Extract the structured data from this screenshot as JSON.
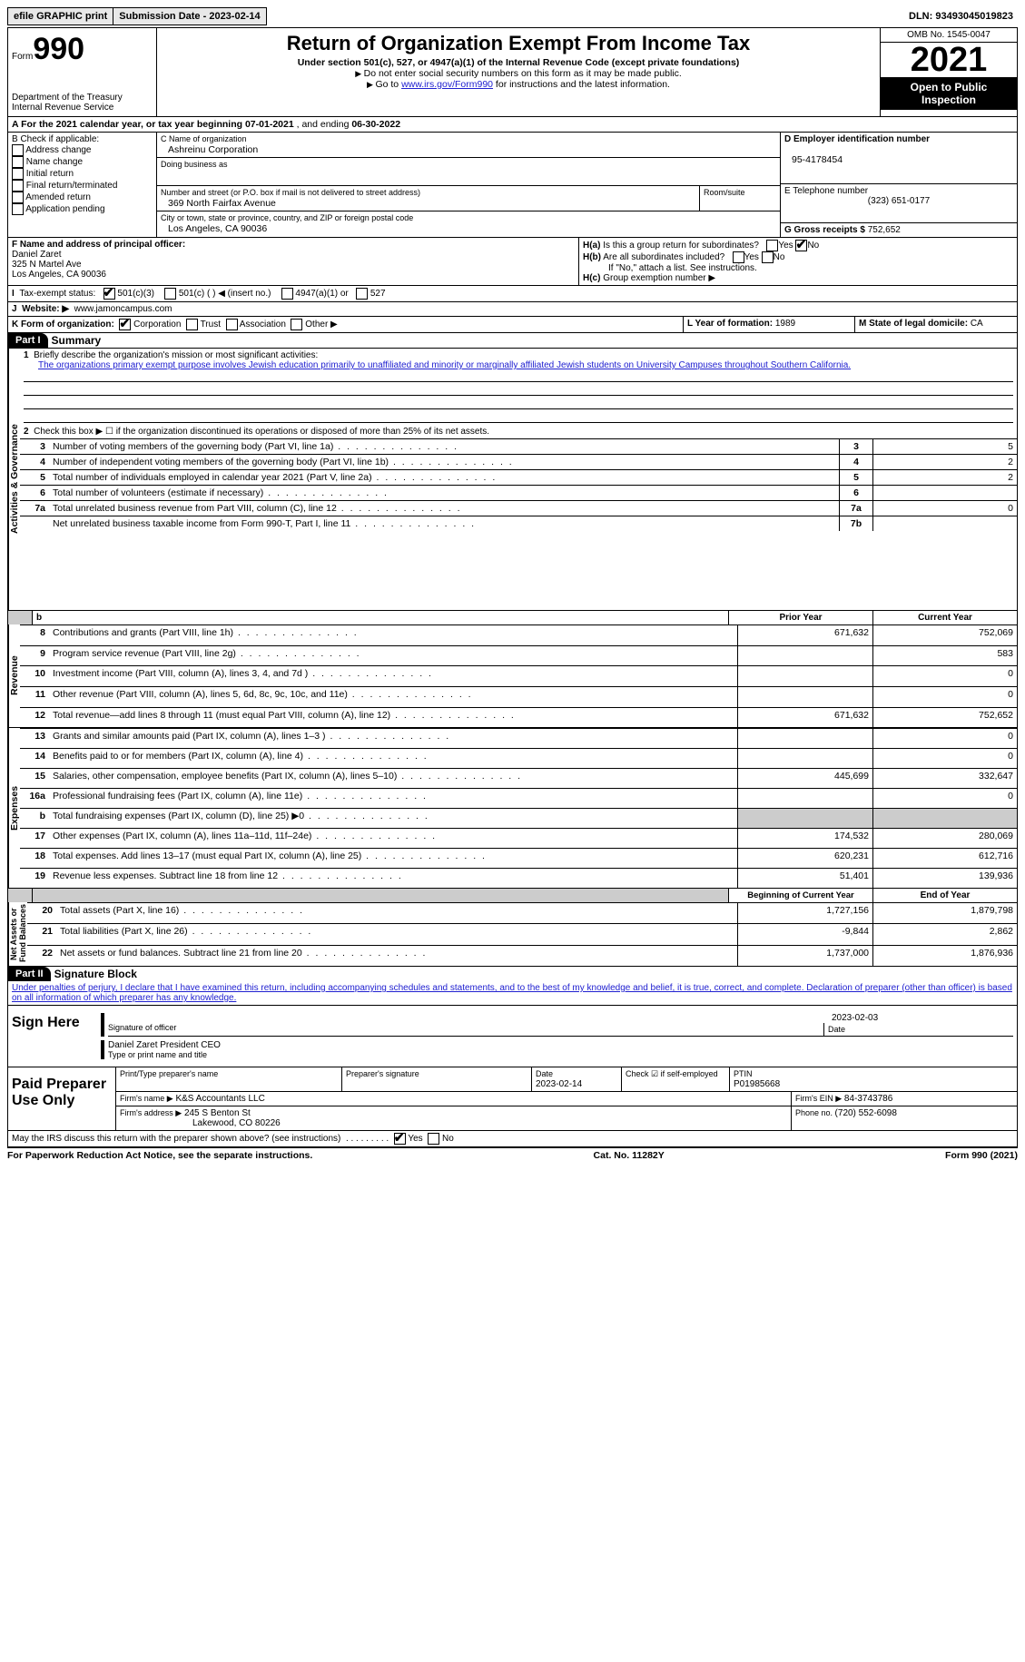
{
  "topbar": {
    "efile": "efile GRAPHIC print",
    "sub_label": "Submission Date - ",
    "sub_date": "2023-02-14",
    "dln_label": "DLN: ",
    "dln": "93493045019823"
  },
  "header": {
    "form_word": "Form",
    "form_no": "990",
    "title": "Return of Organization Exempt From Income Tax",
    "sub": "Under section 501(c), 527, or 4947(a)(1) of the Internal Revenue Code (except private foundations)",
    "note1": "Do not enter social security numbers on this form as it may be made public.",
    "note2_pre": "Go to ",
    "note2_link": "www.irs.gov/Form990",
    "note2_post": " for instructions and the latest information.",
    "dept": "Department of the Treasury",
    "irs": "Internal Revenue Service",
    "omb": "OMB No. 1545-0047",
    "year": "2021",
    "inspect": "Open to Public Inspection"
  },
  "A": {
    "text_pre": "A For the 2021 calendar year, or tax year beginning ",
    "begin": "07-01-2021",
    "mid": " , and ending ",
    "end": "06-30-2022"
  },
  "B": {
    "title": "B Check if applicable:",
    "opts": [
      "Address change",
      "Name change",
      "Initial return",
      "Final return/terminated",
      "Amended return",
      "Application pending"
    ]
  },
  "C": {
    "name_lbl": "C Name of organization",
    "name": "Ashreinu Corporation",
    "dba_lbl": "Doing business as",
    "dba": "",
    "addr_lbl": "Number and street (or P.O. box if mail is not delivered to street address)",
    "room_lbl": "Room/suite",
    "addr": "369 North Fairfax Avenue",
    "city_lbl": "City or town, state or province, country, and ZIP or foreign postal code",
    "city": "Los Angeles, CA  90036"
  },
  "D": {
    "lbl": "D Employer identification number",
    "val": "95-4178454"
  },
  "E": {
    "lbl": "E Telephone number",
    "val": "(323) 651-0177"
  },
  "G": {
    "lbl": "G Gross receipts $ ",
    "val": "752,652"
  },
  "F": {
    "lbl": "F Name and address of principal officer:",
    "name": "Daniel Zaret",
    "addr1": "325 N Martel Ave",
    "addr2": "Los Angeles, CA  90036"
  },
  "H": {
    "a": "Is this a group return for subordinates?",
    "b": "Are all subordinates included?",
    "note": "If \"No,\" attach a list. See instructions.",
    "c": "Group exemption number ▶",
    "yes": "Yes",
    "no": "No"
  },
  "I": {
    "lbl": "Tax-exempt status:",
    "o1": "501(c)(3)",
    "o2": "501(c) (  ) ◀ (insert no.)",
    "o3": "4947(a)(1) or",
    "o4": "527"
  },
  "J": {
    "lbl": "Website: ▶",
    "val": "www.jamoncampus.com"
  },
  "K": {
    "lbl": "K Form of organization:",
    "o1": "Corporation",
    "o2": "Trust",
    "o3": "Association",
    "o4": "Other ▶"
  },
  "L": {
    "lbl": "L Year of formation: ",
    "val": "1989"
  },
  "M": {
    "lbl": "M State of legal domicile: ",
    "val": "CA"
  },
  "part1": {
    "hdr": "Part I",
    "title": "Summary"
  },
  "p1": {
    "l1_lbl": "Briefly describe the organization's mission or most significant activities:",
    "l1_txt": "The organizations primary exempt purpose involves Jewish education primarily to unaffiliated and minority or marginally affiliated Jewish students on University Campuses throughout Southern California.",
    "l2": "Check this box ▶ ☐ if the organization discontinued its operations or disposed of more than 25% of its net assets.",
    "rows_ag": [
      {
        "n": "3",
        "t": "Number of voting members of the governing body (Part VI, line 1a)",
        "box": "3",
        "v": "5"
      },
      {
        "n": "4",
        "t": "Number of independent voting members of the governing body (Part VI, line 1b)",
        "box": "4",
        "v": "2"
      },
      {
        "n": "5",
        "t": "Total number of individuals employed in calendar year 2021 (Part V, line 2a)",
        "box": "5",
        "v": "2"
      },
      {
        "n": "6",
        "t": "Total number of volunteers (estimate if necessary)",
        "box": "6",
        "v": ""
      },
      {
        "n": "7a",
        "t": "Total unrelated business revenue from Part VIII, column (C), line 12",
        "box": "7a",
        "v": "0"
      },
      {
        "n": "",
        "t": "Net unrelated business taxable income from Form 990-T, Part I, line 11",
        "box": "7b",
        "v": ""
      }
    ],
    "col_prior": "Prior Year",
    "col_curr": "Current Year",
    "rev": [
      {
        "n": "8",
        "t": "Contributions and grants (Part VIII, line 1h)",
        "p": "671,632",
        "c": "752,069"
      },
      {
        "n": "9",
        "t": "Program service revenue (Part VIII, line 2g)",
        "p": "",
        "c": "583"
      },
      {
        "n": "10",
        "t": "Investment income (Part VIII, column (A), lines 3, 4, and 7d )",
        "p": "",
        "c": "0"
      },
      {
        "n": "11",
        "t": "Other revenue (Part VIII, column (A), lines 5, 6d, 8c, 9c, 10c, and 11e)",
        "p": "",
        "c": "0"
      },
      {
        "n": "12",
        "t": "Total revenue—add lines 8 through 11 (must equal Part VIII, column (A), line 12)",
        "p": "671,632",
        "c": "752,652"
      }
    ],
    "exp": [
      {
        "n": "13",
        "t": "Grants and similar amounts paid (Part IX, column (A), lines 1–3 )",
        "p": "",
        "c": "0"
      },
      {
        "n": "14",
        "t": "Benefits paid to or for members (Part IX, column (A), line 4)",
        "p": "",
        "c": "0"
      },
      {
        "n": "15",
        "t": "Salaries, other compensation, employee benefits (Part IX, column (A), lines 5–10)",
        "p": "445,699",
        "c": "332,647"
      },
      {
        "n": "16a",
        "t": "Professional fundraising fees (Part IX, column (A), line 11e)",
        "p": "",
        "c": "0"
      },
      {
        "n": "b",
        "t": "Total fundraising expenses (Part IX, column (D), line 25) ▶0",
        "p": "SHADE",
        "c": "SHADE"
      },
      {
        "n": "17",
        "t": "Other expenses (Part IX, column (A), lines 11a–11d, 11f–24e)",
        "p": "174,532",
        "c": "280,069"
      },
      {
        "n": "18",
        "t": "Total expenses. Add lines 13–17 (must equal Part IX, column (A), line 25)",
        "p": "620,231",
        "c": "612,716"
      },
      {
        "n": "19",
        "t": "Revenue less expenses. Subtract line 18 from line 12",
        "p": "51,401",
        "c": "139,936"
      }
    ],
    "col_beg": "Beginning of Current Year",
    "col_end": "End of Year",
    "na": [
      {
        "n": "20",
        "t": "Total assets (Part X, line 16)",
        "p": "1,727,156",
        "c": "1,879,798"
      },
      {
        "n": "21",
        "t": "Total liabilities (Part X, line 26)",
        "p": "-9,844",
        "c": "2,862"
      },
      {
        "n": "22",
        "t": "Net assets or fund balances. Subtract line 21 from line 20",
        "p": "1,737,000",
        "c": "1,876,936"
      }
    ]
  },
  "sides": {
    "ag": "Activities & Governance",
    "rev": "Revenue",
    "exp": "Expenses",
    "na": "Net Assets or\nFund Balances"
  },
  "part2": {
    "hdr": "Part II",
    "title": "Signature Block"
  },
  "sig": {
    "decl": "Under penalties of perjury, I declare that I have examined this return, including accompanying schedules and statements, and to the best of my knowledge and belief, it is true, correct, and complete. Declaration of preparer (other than officer) is based on all information of which preparer has any knowledge.",
    "sign_here": "Sign Here",
    "sig_off": "Signature of officer",
    "date_l": "Date",
    "date": "2023-02-03",
    "name": "Daniel Zaret  President CEO",
    "name_l": "Type or print name and title",
    "paid": "Paid Preparer Use Only",
    "pp_name_l": "Print/Type preparer's name",
    "pp_sig_l": "Preparer's signature",
    "pp_date_l": "Date",
    "pp_date": "2023-02-14",
    "pp_chk": "Check ☑ if self-employed",
    "ptin_l": "PTIN",
    "ptin": "P01985668",
    "firm_l": "Firm's name   ▶",
    "firm": "K&S Accountants LLC",
    "ein_l": "Firm's EIN ▶",
    "ein": "84-3743786",
    "faddr_l": "Firm's address ▶",
    "faddr": "245 S Benton St",
    "faddr2": "Lakewood, CO  80226",
    "phone_l": "Phone no. ",
    "phone": "(720) 552-6098",
    "may": "May the IRS discuss this return with the preparer shown above? (see instructions)"
  },
  "footer": {
    "l": "For Paperwork Reduction Act Notice, see the separate instructions.",
    "m": "Cat. No. 11282Y",
    "r": "Form 990 (2021)"
  }
}
